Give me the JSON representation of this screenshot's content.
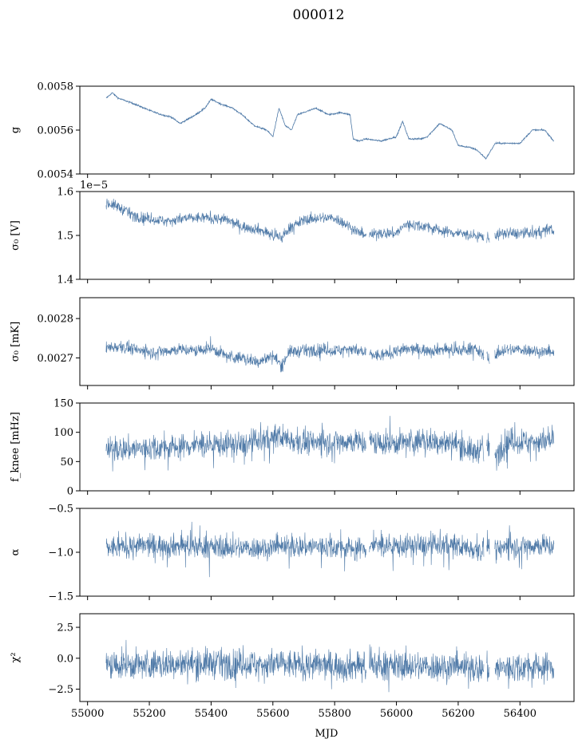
{
  "figure": {
    "title": "000012",
    "xlabel": "MJD"
  },
  "colors": {
    "series": "#4e79a7",
    "axis": "#000000",
    "background": "#ffffff"
  },
  "chart_data": [
    {
      "type": "line",
      "name": "g-panel",
      "ylabel": "g",
      "ylim": [
        0.0054,
        0.0058
      ],
      "yticks": [
        {
          "v": 0.0054,
          "label": "0.0054"
        },
        {
          "v": 0.0056,
          "label": "0.0056"
        },
        {
          "v": 0.0058,
          "label": "0.0058"
        }
      ],
      "xticklabels": false,
      "noise": 2.5e-06,
      "spikes": 0,
      "offset_text": "",
      "x": [
        55060,
        55080,
        55100,
        55150,
        55200,
        55240,
        55270,
        55300,
        55350,
        55380,
        55400,
        55430,
        55470,
        55500,
        55540,
        55580,
        55600,
        55620,
        55640,
        55660,
        55680,
        55700,
        55740,
        55780,
        55820,
        55850,
        55860,
        55880,
        55900,
        55950,
        56000,
        56020,
        56040,
        56080,
        56100,
        56140,
        56180,
        56200,
        56240,
        56260,
        56290,
        56320,
        56360,
        56400,
        56440,
        56480,
        56510
      ],
      "values": [
        0.005745,
        0.00577,
        0.005745,
        0.00572,
        0.00569,
        0.00567,
        0.00566,
        0.00563,
        0.00567,
        0.0057,
        0.00574,
        0.00572,
        0.0057,
        0.00567,
        0.00562,
        0.0056,
        0.00557,
        0.0057,
        0.00562,
        0.0056,
        0.00567,
        0.00568,
        0.0057,
        0.00567,
        0.00568,
        0.00567,
        0.00556,
        0.00555,
        0.00556,
        0.00555,
        0.00557,
        0.00564,
        0.00556,
        0.00556,
        0.00557,
        0.00563,
        0.0056,
        0.00553,
        0.00552,
        0.00551,
        0.00547,
        0.00554,
        0.00554,
        0.00554,
        0.0056,
        0.0056,
        0.00555
      ]
    },
    {
      "type": "line",
      "name": "sigma0-volts-panel",
      "ylabel": "σ₀ [V]",
      "ylim": [
        1.4,
        1.6
      ],
      "yticks": [
        {
          "v": 1.4,
          "label": "1.4"
        },
        {
          "v": 1.5,
          "label": "1.5"
        },
        {
          "v": 1.6,
          "label": "1.6"
        }
      ],
      "xticklabels": false,
      "noise": 0.009,
      "spikes": 0.008,
      "offset_text": "1e−5",
      "x": [
        55060,
        55100,
        55150,
        55200,
        55250,
        55300,
        55350,
        55400,
        55450,
        55500,
        55550,
        55600,
        55630,
        55650,
        55700,
        55750,
        55800,
        55850,
        55880,
        55900,
        55950,
        56000,
        56030,
        56050,
        56100,
        56150,
        56200,
        56250,
        56300,
        56320,
        56350,
        56400,
        56450,
        56500,
        56510
      ],
      "values": [
        1.575,
        1.565,
        1.545,
        1.538,
        1.533,
        1.537,
        1.54,
        1.54,
        1.535,
        1.52,
        1.515,
        1.5,
        1.495,
        1.515,
        1.535,
        1.54,
        1.54,
        1.52,
        1.505,
        1.5,
        1.505,
        1.505,
        1.525,
        1.525,
        1.52,
        1.51,
        1.505,
        1.5,
        1.495,
        1.5,
        1.505,
        1.505,
        1.505,
        1.515,
        1.51
      ]
    },
    {
      "type": "line",
      "name": "sigma0-mk-panel",
      "ylabel": "σ₀ [mK]",
      "ylim": [
        0.00263,
        0.002853
      ],
      "yticks": [
        {
          "v": 0.0027,
          "label": "0.0027"
        },
        {
          "v": 0.0028,
          "label": "0.0028"
        }
      ],
      "xticklabels": false,
      "noise": 1.1e-05,
      "spikes": 1.5e-05,
      "offset_text": "",
      "x": [
        55060,
        55100,
        55150,
        55200,
        55250,
        55300,
        55350,
        55400,
        55450,
        55500,
        55550,
        55600,
        55630,
        55650,
        55700,
        55750,
        55800,
        55850,
        55900,
        55950,
        56000,
        56050,
        56100,
        56150,
        56200,
        56250,
        56280,
        56300,
        56350,
        56400,
        56450,
        56510
      ],
      "values": [
        0.002725,
        0.00273,
        0.002722,
        0.002715,
        0.002718,
        0.002722,
        0.002718,
        0.002725,
        0.002705,
        0.0027,
        0.00269,
        0.002705,
        0.00268,
        0.002715,
        0.002718,
        0.002722,
        0.002718,
        0.002725,
        0.00271,
        0.002705,
        0.002718,
        0.002722,
        0.00272,
        0.002722,
        0.002718,
        0.002725,
        0.002708,
        0.0027,
        0.00272,
        0.002722,
        0.002718,
        0.002712
      ]
    },
    {
      "type": "line",
      "name": "fknee-panel",
      "ylabel": "f_knee [mHz]",
      "ylim": [
        0,
        150
      ],
      "yticks": [
        {
          "v": 0,
          "label": "0"
        },
        {
          "v": 50,
          "label": "50"
        },
        {
          "v": 100,
          "label": "100"
        },
        {
          "v": 150,
          "label": "150"
        }
      ],
      "xticklabels": false,
      "noise": 15,
      "spikes": 25,
      "offset_text": "",
      "x": [
        55060,
        55150,
        55250,
        55350,
        55450,
        55500,
        55550,
        55600,
        55620,
        55640,
        55700,
        55800,
        55850,
        55900,
        55905,
        55915,
        55950,
        56000,
        56050,
        56100,
        56150,
        56200,
        56250,
        56270,
        56290,
        56300,
        56320,
        56350,
        56400,
        56450,
        56510
      ],
      "values": [
        70,
        72,
        74,
        78,
        80,
        78,
        85,
        88,
        95,
        90,
        82,
        85,
        85,
        82,
        70,
        85,
        80,
        82,
        85,
        85,
        83,
        80,
        65,
        72,
        62,
        80,
        55,
        85,
        84,
        85,
        84
      ]
    },
    {
      "type": "line",
      "name": "alpha-panel",
      "ylabel": "α",
      "ylim": [
        -1.5,
        -0.5
      ],
      "yticks": [
        {
          "v": -1.5,
          "label": "−1.5"
        },
        {
          "v": -1.0,
          "label": "−1.0"
        },
        {
          "v": -0.5,
          "label": "−0.5"
        }
      ],
      "xticklabels": false,
      "noise": 0.09,
      "spikes": 0.18,
      "offset_text": "",
      "x": [
        55060,
        55150,
        55250,
        55350,
        55450,
        55550,
        55650,
        55750,
        55850,
        55900,
        55905,
        55915,
        56000,
        56100,
        56200,
        56250,
        56280,
        56300,
        56320,
        56350,
        56450,
        56510
      ],
      "values": [
        -0.95,
        -0.93,
        -0.92,
        -0.93,
        -0.95,
        -0.95,
        -0.94,
        -0.93,
        -0.95,
        -0.96,
        -0.9,
        -0.92,
        -0.93,
        -0.92,
        -0.93,
        -0.96,
        -0.98,
        -0.9,
        -1.0,
        -0.93,
        -0.92,
        -0.93
      ]
    },
    {
      "type": "line",
      "name": "chi2-panel",
      "ylabel": "χ²",
      "ylim": [
        -3.5,
        3.6
      ],
      "yticks": [
        {
          "v": -2.5,
          "label": "−2.5"
        },
        {
          "v": 0.0,
          "label": "0.0"
        },
        {
          "v": 2.5,
          "label": "2.5"
        }
      ],
      "xticklabels": true,
      "noise": 0.85,
      "spikes": 0.9,
      "offset_text": "",
      "x": [
        55060,
        55200,
        55400,
        55600,
        55800,
        55900,
        56000,
        56200,
        56300,
        56400,
        56510
      ],
      "values": [
        -0.6,
        -0.5,
        -0.4,
        -0.5,
        -0.6,
        -0.6,
        -0.6,
        -0.7,
        -0.9,
        -0.7,
        -0.7
      ]
    }
  ],
  "x_axis": {
    "range": [
      54975,
      56575
    ],
    "ticks": [
      {
        "v": 55000,
        "label": "55000"
      },
      {
        "v": 55200,
        "label": "55200"
      },
      {
        "v": 55400,
        "label": "55400"
      },
      {
        "v": 55600,
        "label": "55600"
      },
      {
        "v": 55800,
        "label": "55800"
      },
      {
        "v": 56000,
        "label": "56000"
      },
      {
        "v": 56200,
        "label": "56200"
      },
      {
        "v": 56400,
        "label": "56400"
      }
    ]
  },
  "gaps": [
    [
      55902,
      55912
    ],
    [
      56283,
      56292
    ],
    [
      56302,
      56318
    ]
  ]
}
